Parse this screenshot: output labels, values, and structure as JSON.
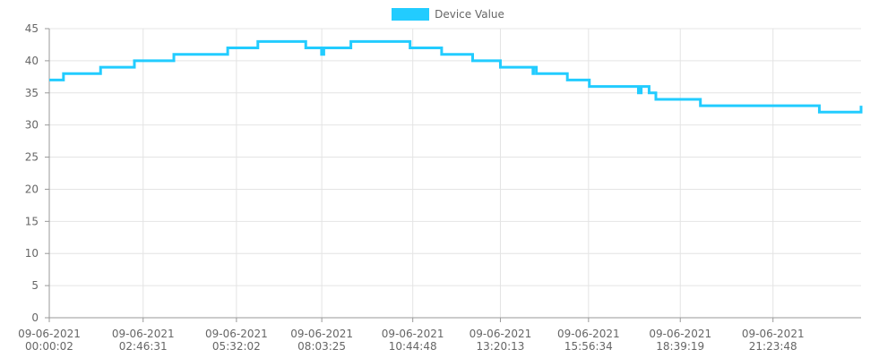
{
  "chart_data": {
    "type": "line",
    "title": "",
    "xlabel": "",
    "ylabel": "",
    "grid": true,
    "legend_position": "top-center",
    "ylim": [
      0,
      45
    ],
    "y_ticks": [
      "0",
      "5",
      "10",
      "15",
      "20",
      "25",
      "30",
      "35",
      "40",
      "45"
    ],
    "x_ticks": [
      {
        "date": "09-06-2021",
        "time": "00:00:02"
      },
      {
        "date": "09-06-2021",
        "time": "02:46:31"
      },
      {
        "date": "09-06-2021",
        "time": "05:32:02"
      },
      {
        "date": "09-06-2021",
        "time": "08:03:25"
      },
      {
        "date": "09-06-2021",
        "time": "10:44:48"
      },
      {
        "date": "09-06-2021",
        "time": "13:20:13"
      },
      {
        "date": "09-06-2021",
        "time": "15:56:34"
      },
      {
        "date": "09-06-2021",
        "time": "18:39:19"
      },
      {
        "date": "09-06-2021",
        "time": "21:23:48"
      }
    ],
    "series": [
      {
        "name": "Device Value",
        "color": "#22ccff",
        "step": true,
        "x": [
          "00:00:02",
          "00:25:12",
          "01:31:00",
          "02:31:00",
          "03:41:00",
          "05:16:00",
          "05:16:30",
          "06:10:00",
          "07:35:00",
          "08:03:00",
          "08:05:00",
          "08:07:00",
          "08:55:00",
          "10:40:00",
          "11:36:00",
          "12:31:00",
          "13:20:13",
          "14:18:00",
          "14:19:00",
          "14:24:00",
          "15:19:00",
          "15:58:00",
          "17:25:00",
          "17:26:00",
          "17:29:00",
          "17:30:00",
          "17:44:00",
          "17:56:00",
          "19:15:00",
          "22:46:00",
          "23:59:59"
        ],
        "values": [
          37,
          38,
          39,
          40,
          41,
          41,
          42,
          43,
          42,
          41,
          41,
          42,
          43,
          42,
          41,
          40,
          39,
          38,
          39,
          38,
          37,
          36,
          35,
          36,
          35,
          36,
          35,
          34,
          33,
          32,
          33
        ]
      }
    ]
  }
}
